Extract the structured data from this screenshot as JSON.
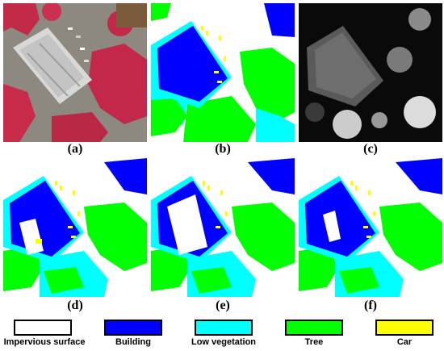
{
  "captions": [
    "(a)",
    "(b)",
    "(c)",
    "(d)",
    "(e)",
    "(f)"
  ],
  "legend": [
    {
      "label": "Impervious surface",
      "color": "#ffffff"
    },
    {
      "label": "Building",
      "color": "#0000ff"
    },
    {
      "label": "Low vegetation",
      "color": "#00ffff"
    },
    {
      "label": "Tree",
      "color": "#00ff00"
    },
    {
      "label": "Car",
      "color": "#ffff00"
    }
  ]
}
